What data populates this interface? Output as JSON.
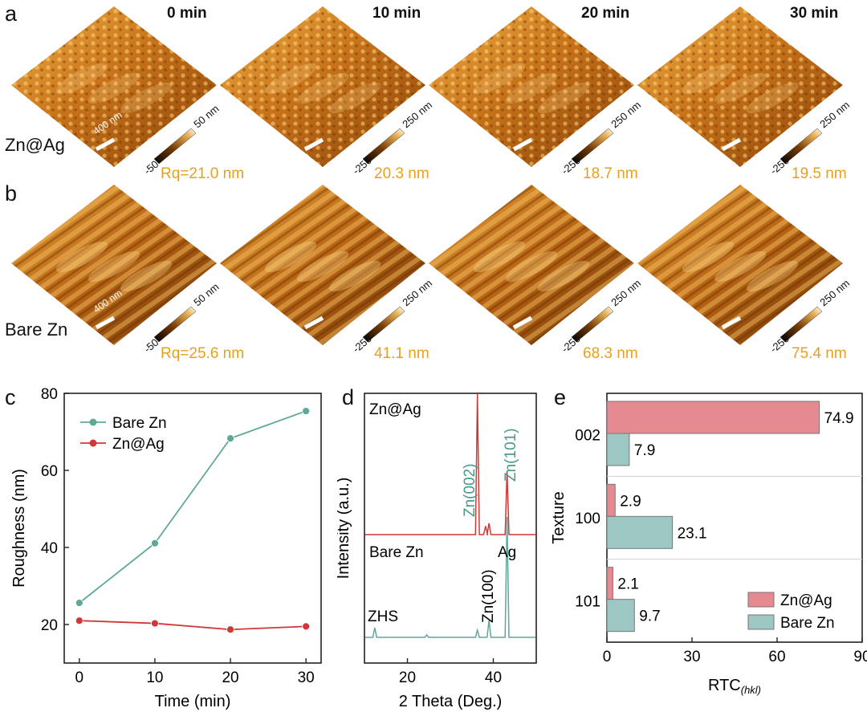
{
  "panels": {
    "a": "a",
    "b": "b",
    "c": "c",
    "d": "d",
    "e": "e"
  },
  "afm": {
    "times": [
      "0 min",
      "10 min",
      "20 min",
      "30 min"
    ],
    "rows": [
      {
        "label": "Zn@Ag",
        "rq": [
          "Rq=21.0 nm",
          "20.3 nm",
          "18.7 nm",
          "19.5 nm"
        ],
        "scale_min": [
          "-50",
          "-250",
          "-250",
          "-250"
        ],
        "scale_max": [
          "50 nm",
          "250 nm",
          "250 nm",
          "250 nm"
        ]
      },
      {
        "label": "Bare Zn",
        "rq": [
          "Rq=25.6 nm",
          "41.1 nm",
          "68.3 nm",
          "75.4 nm"
        ],
        "scale_min": [
          "-50",
          "-250",
          "-250",
          "-250"
        ],
        "scale_max": [
          "50 nm",
          "250 nm",
          "250 nm",
          "250 nm"
        ]
      }
    ],
    "scale_bar": "400 nm",
    "colors": {
      "surface_light": "#f0b040",
      "surface_mid": "#c06810",
      "surface_dark": "#5a2a05"
    }
  },
  "chart_data": [
    {
      "type": "line",
      "panel": "c",
      "xlabel": "Time (min)",
      "ylabel": "Roughness (nm)",
      "x": [
        0,
        10,
        20,
        30
      ],
      "xlim": [
        -2,
        32
      ],
      "ylim": [
        10,
        80
      ],
      "xticks": [
        "0",
        "10",
        "20",
        "30"
      ],
      "yticks": [
        "20",
        "40",
        "60",
        "80"
      ],
      "legend_position": "top-left",
      "series": [
        {
          "name": "Bare Zn",
          "values": [
            25.6,
            41.1,
            68.3,
            75.4
          ],
          "color": "#5fa898"
        },
        {
          "name": "Zn@Ag",
          "values": [
            21.0,
            20.3,
            18.7,
            19.5
          ],
          "color": "#d03838"
        }
      ]
    },
    {
      "type": "line",
      "panel": "d",
      "xlabel": "2 Theta (Deg.)",
      "ylabel": "Intensity (a.u.)",
      "xlim": [
        10,
        50
      ],
      "xticks": [
        "20",
        "40"
      ],
      "series": [
        {
          "name": "Zn@Ag",
          "color": "#d03838",
          "peaks": [
            [
              36.3,
              1.0
            ],
            [
              38.2,
              0.06
            ],
            [
              39.0,
              0.08
            ],
            [
              43.2,
              0.45
            ]
          ]
        },
        {
          "name": "Bare Zn",
          "color": "#5fa898",
          "peaks": [
            [
              12.4,
              0.08
            ],
            [
              24.5,
              0.02
            ],
            [
              36.3,
              0.06
            ],
            [
              39.0,
              0.14
            ],
            [
              43.2,
              1.0
            ]
          ]
        }
      ],
      "annotations": [
        "Zn(002)",
        "Zn(101)",
        "Ag",
        "ZHS",
        "Zn(100)"
      ]
    },
    {
      "type": "bar",
      "panel": "e",
      "orientation": "horizontal",
      "xlabel": "RTC",
      "xlabel_sub": "(hkl)",
      "ylabel": "Texture",
      "categories": [
        "002",
        "100",
        "101"
      ],
      "xlim": [
        0,
        90
      ],
      "xticks": [
        "0",
        "30",
        "60",
        "90"
      ],
      "legend_position": "bottom-right",
      "series": [
        {
          "name": "Zn@Ag",
          "values": [
            74.9,
            2.9,
            2.1
          ],
          "labels": [
            "74.9",
            "2.9",
            "2.1"
          ],
          "color": "#e58a90"
        },
        {
          "name": "Bare Zn",
          "values": [
            7.9,
            23.1,
            9.7
          ],
          "labels": [
            "7.9",
            "23.1",
            "9.7"
          ],
          "color": "#9cc7c2"
        }
      ]
    }
  ]
}
